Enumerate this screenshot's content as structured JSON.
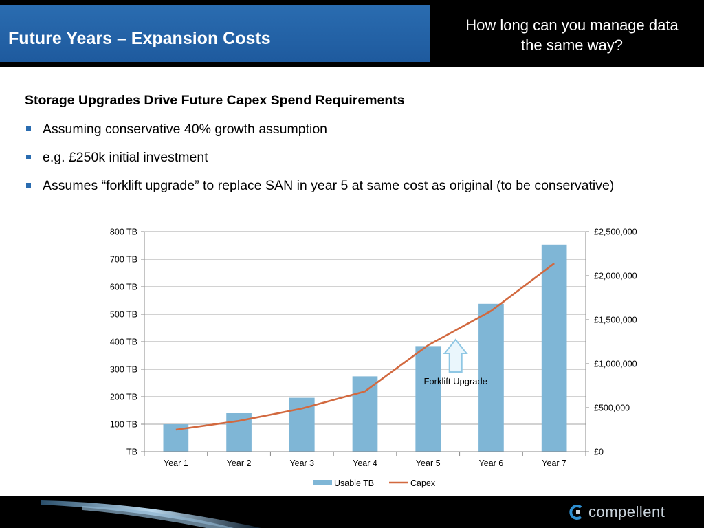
{
  "header": {
    "title": "Future Years – Expansion Costs",
    "question_lines": [
      "How long can you manage data",
      "the same way?"
    ]
  },
  "body": {
    "heading": "Storage Upgrades Drive Future Capex Spend Requirements",
    "bullets": [
      "Assuming conservative 40% growth assumption",
      "e.g. £250k initial investment",
      "Assumes “forklift upgrade” to replace SAN in year 5 at same cost as original (to be conservative)"
    ]
  },
  "chart_data": {
    "type": "bar",
    "categories": [
      "Year 1",
      "Year 2",
      "Year 3",
      "Year 4",
      "Year 5",
      "Year 6",
      "Year 7"
    ],
    "series": [
      {
        "name": "Usable TB",
        "type": "bar",
        "axis": "left",
        "color": "#7fb6d6",
        "values": [
          100,
          140,
          196,
          274,
          384,
          538,
          753
        ]
      },
      {
        "name": "Capex",
        "type": "line",
        "axis": "right",
        "color": "#d2693f",
        "values": [
          250000,
          350000,
          490000,
          686000,
          1210000,
          1600000,
          2140000
        ]
      }
    ],
    "y_left": {
      "ylim": [
        0,
        800
      ],
      "ticks": [
        "TB",
        "100 TB",
        "200 TB",
        "300 TB",
        "400 TB",
        "500 TB",
        "600 TB",
        "700 TB",
        "800 TB"
      ]
    },
    "y_right": {
      "ylim": [
        0,
        2500000
      ],
      "ticks": [
        "£0",
        "£500,000",
        "£1,000,000",
        "£1,500,000",
        "£2,000,000",
        "£2,500,000"
      ]
    },
    "grid": true,
    "legend_position": "bottom",
    "annotation": {
      "text": "Forklift Upgrade",
      "category": "Year 5"
    }
  },
  "footer": {
    "logo_text": "compellent",
    "accent_color": "#1e5a9e"
  }
}
